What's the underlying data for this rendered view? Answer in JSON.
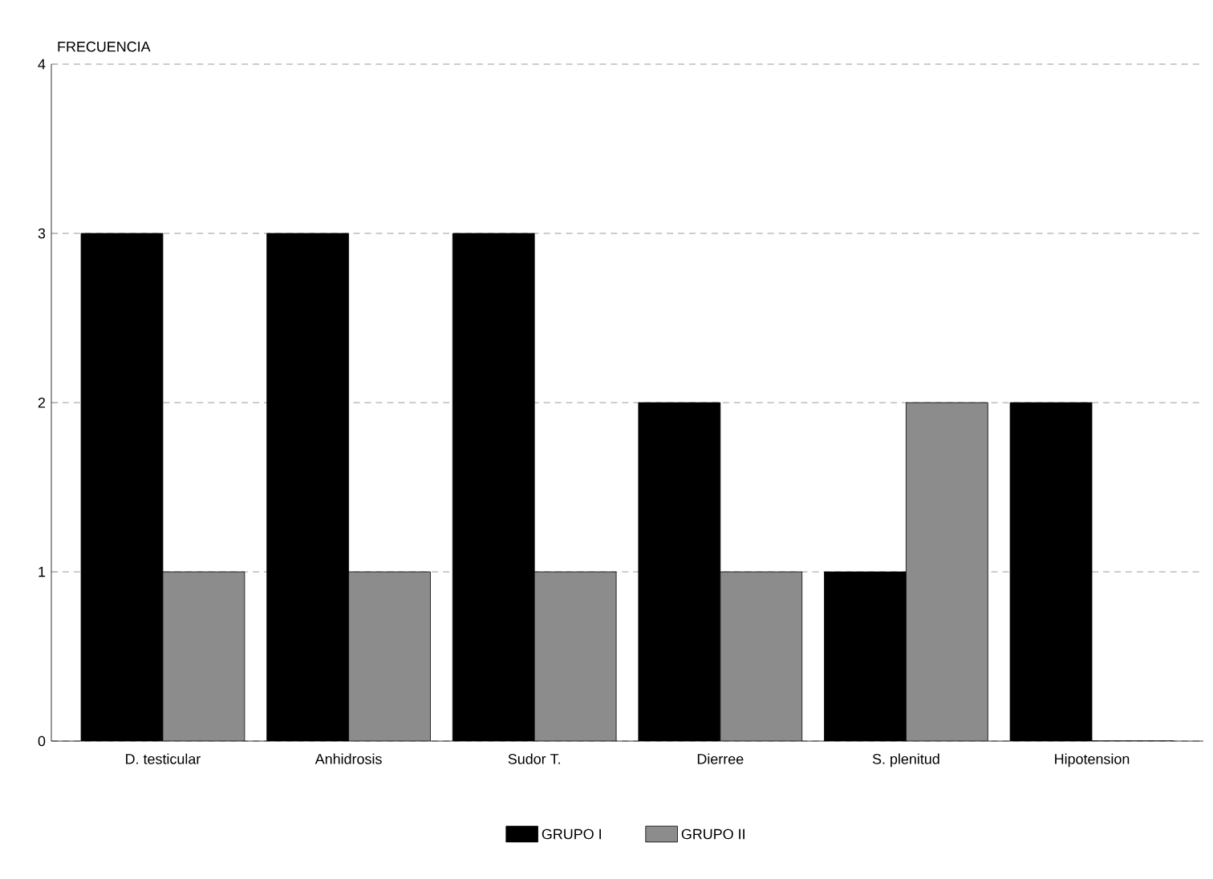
{
  "chart_data": {
    "type": "bar",
    "ylabel": "FRECUENCIA",
    "categories": [
      "D. testicular",
      "Anhidrosis",
      "Sudor T.",
      "Dierree",
      "S. plenitud",
      "Hipotension"
    ],
    "series": [
      {
        "name": "GRUPO I",
        "color": "#000000",
        "values": [
          3,
          3,
          3,
          2,
          1,
          2
        ]
      },
      {
        "name": "GRUPO II",
        "color": "#8c8c8c",
        "values": [
          1,
          1,
          1,
          1,
          2,
          0
        ]
      }
    ],
    "ylim": [
      0,
      4
    ],
    "yticks": [
      0,
      1,
      2,
      3,
      4
    ],
    "grid": "y",
    "legend": "bottom"
  }
}
